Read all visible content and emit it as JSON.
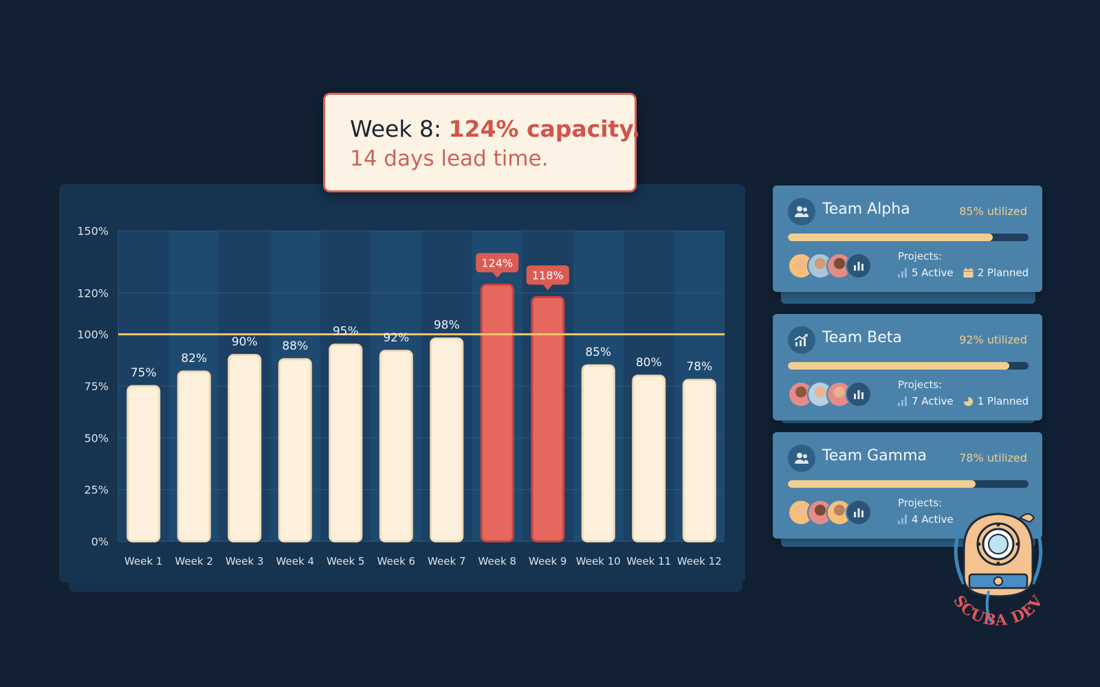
{
  "callout": {
    "prefix": "Week 8: ",
    "highlight": "124% capacity.",
    "line2": "14 days lead time."
  },
  "chart_data": {
    "type": "bar",
    "categories": [
      "Week 1",
      "Week 2",
      "Week 3",
      "Week 4",
      "Week 5",
      "Week 6",
      "Week 7",
      "Week 8",
      "Week 9",
      "Week 10",
      "Week 11",
      "Week 12"
    ],
    "values": [
      75,
      82,
      90,
      88,
      95,
      92,
      98,
      124,
      118,
      85,
      80,
      78
    ],
    "data_labels": [
      "75%",
      "82%",
      "90%",
      "88%",
      "95%",
      "92%",
      "98%",
      "124%",
      "118%",
      "85%",
      "80%",
      "78%"
    ],
    "over_capacity": [
      false,
      false,
      false,
      false,
      false,
      false,
      false,
      true,
      true,
      false,
      false,
      false
    ],
    "yticks": [
      0,
      25,
      50,
      75,
      100,
      120,
      150
    ],
    "ytick_labels": [
      "0%",
      "25%",
      "50%",
      "75%",
      "100%",
      "120%",
      "150%"
    ],
    "ylim": [
      0,
      150
    ],
    "threshold": 100,
    "grid": true,
    "colors": {
      "normal": "#fdf1de",
      "over": "#e5675d",
      "threshold": "#f6c46a"
    }
  },
  "teams": [
    {
      "name": "Team Alpha",
      "utilization_label": "85% utilized",
      "utilization": 0.85,
      "icon": "team-icon",
      "projects_label": "Projects:",
      "active": "5 Active",
      "planned": "2 Planned",
      "planned_icon": "calendar-icon"
    },
    {
      "name": "Team Beta",
      "utilization_label": "92% utilized",
      "utilization": 0.92,
      "icon": "trend-icon",
      "projects_label": "Projects:",
      "active": "7 Active",
      "planned": "1 Planned",
      "planned_icon": "pie-icon"
    },
    {
      "name": "Team Gamma",
      "utilization_label": "78% utilized",
      "utilization": 0.78,
      "icon": "team-icon",
      "projects_label": "Projects:",
      "active": "4 Active",
      "planned": "",
      "planned_icon": ""
    }
  ],
  "logo": {
    "text": "SCUBA DEV"
  }
}
